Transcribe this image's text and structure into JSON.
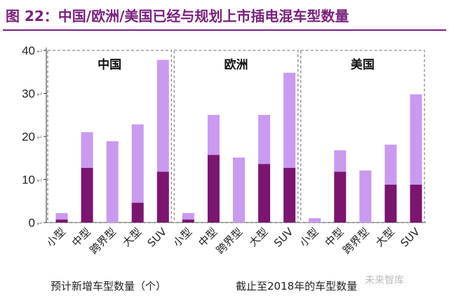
{
  "title": "图 22：中国/欧洲/美国已经与规划上市插电混车型数量",
  "chart_data": {
    "type": "bar",
    "stacked": true,
    "ylim": [
      0,
      40
    ],
    "yticks": [
      0,
      10,
      20,
      30,
      40
    ],
    "categories": [
      "小型",
      "中型",
      "跨界型",
      "大型",
      "SUV"
    ],
    "panels": [
      {
        "name": "中国",
        "existing": [
          0.7,
          12.7,
          0,
          4.6,
          11.8
        ],
        "total": [
          2.2,
          21,
          18.9,
          22.8,
          37.8
        ]
      },
      {
        "name": "欧洲",
        "existing": [
          0.7,
          15.7,
          0,
          13.6,
          12.7
        ],
        "total": [
          2.2,
          25,
          15.1,
          25,
          34.8
        ]
      },
      {
        "name": "美国",
        "existing": [
          0,
          11.8,
          0,
          8.8,
          8.8
        ],
        "total": [
          1,
          16.8,
          12.1,
          18.1,
          29.8
        ]
      }
    ],
    "colors": {
      "existing": "#7b1570",
      "planned": "#c99af0"
    },
    "legend": {
      "planned": "预计新增车型数量（个）",
      "existing": "截止至2018年的车型数量"
    }
  },
  "watermark": "未来智库"
}
